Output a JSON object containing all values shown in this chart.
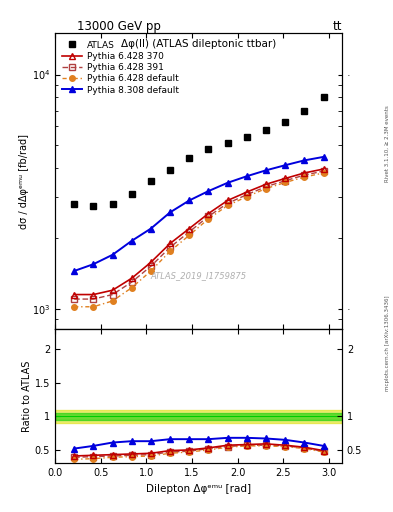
{
  "title_top": "13000 GeV pp",
  "title_top_right": "tt",
  "plot_title": "Δφ(ll) (ATLAS dileptonic ttbar)",
  "ylabel_main": "dσ / dΔφᵉᵐᵘ [fb/rad]",
  "ylabel_ratio": "Ratio to ATLAS",
  "xlabel": "Dilepton Δφᵉᵐᵘ [rad]",
  "right_label": "Rivet 3.1.10, ≥ 2.3M events",
  "right_label2": "mcplots.cern.ch [arXiv:1306.3436]",
  "watermark": "ATLAS_2019_I1759875",
  "atlas_x": [
    0.21,
    0.42,
    0.63,
    0.84,
    1.05,
    1.26,
    1.47,
    1.68,
    1.89,
    2.1,
    2.31,
    2.52,
    2.73,
    2.94
  ],
  "atlas_y": [
    2800,
    2750,
    2800,
    3100,
    3500,
    3900,
    4400,
    4800,
    5100,
    5400,
    5800,
    6300,
    7000,
    8000
  ],
  "py6_370_x": [
    0.21,
    0.42,
    0.63,
    0.84,
    1.05,
    1.26,
    1.47,
    1.68,
    1.89,
    2.1,
    2.31,
    2.52,
    2.73,
    2.94
  ],
  "py6_370_y": [
    1150,
    1150,
    1200,
    1350,
    1580,
    1900,
    2200,
    2550,
    2900,
    3150,
    3400,
    3600,
    3800,
    3950
  ],
  "py6_391_x": [
    0.21,
    0.42,
    0.63,
    0.84,
    1.05,
    1.26,
    1.47,
    1.68,
    1.89,
    2.1,
    2.31,
    2.52,
    2.73,
    2.94
  ],
  "py6_391_y": [
    1100,
    1100,
    1150,
    1300,
    1520,
    1830,
    2130,
    2480,
    2820,
    3070,
    3320,
    3520,
    3720,
    3870
  ],
  "py6_def_x": [
    0.21,
    0.42,
    0.63,
    0.84,
    1.05,
    1.26,
    1.47,
    1.68,
    1.89,
    2.1,
    2.31,
    2.52,
    2.73,
    2.94
  ],
  "py6_def_y": [
    1020,
    1020,
    1080,
    1230,
    1450,
    1760,
    2060,
    2420,
    2760,
    3010,
    3260,
    3460,
    3650,
    3800
  ],
  "py8_def_x": [
    0.21,
    0.42,
    0.63,
    0.84,
    1.05,
    1.26,
    1.47,
    1.68,
    1.89,
    2.1,
    2.31,
    2.52,
    2.73,
    2.94
  ],
  "py8_def_y": [
    1450,
    1550,
    1700,
    1950,
    2200,
    2580,
    2900,
    3180,
    3450,
    3680,
    3900,
    4100,
    4300,
    4450
  ],
  "ratio_py6_370": [
    0.41,
    0.42,
    0.43,
    0.44,
    0.45,
    0.49,
    0.5,
    0.53,
    0.57,
    0.58,
    0.59,
    0.57,
    0.54,
    0.49
  ],
  "ratio_py6_391": [
    0.39,
    0.4,
    0.41,
    0.42,
    0.43,
    0.47,
    0.48,
    0.52,
    0.55,
    0.57,
    0.57,
    0.56,
    0.53,
    0.48
  ],
  "ratio_py6_def": [
    0.36,
    0.37,
    0.39,
    0.4,
    0.41,
    0.45,
    0.47,
    0.5,
    0.54,
    0.56,
    0.56,
    0.55,
    0.52,
    0.47
  ],
  "ratio_py8_def": [
    0.52,
    0.56,
    0.61,
    0.63,
    0.63,
    0.66,
    0.66,
    0.66,
    0.68,
    0.68,
    0.67,
    0.65,
    0.61,
    0.56
  ],
  "color_atlas": "#000000",
  "color_py6_370": "#c00000",
  "color_py6_391": "#b04040",
  "color_py6_def": "#e08020",
  "color_py8_def": "#0000dd",
  "band_yellow": "#dddd00",
  "band_green": "#00cc00",
  "band_yellow_alpha": 0.55,
  "band_green_alpha": 0.55,
  "ylim_main": [
    820,
    15000
  ],
  "ylim_ratio": [
    0.3,
    2.3
  ],
  "xlim": [
    0.0,
    3.14159
  ],
  "yticks_ratio_left": [
    0.5,
    1.0,
    1.5,
    2.0
  ],
  "yticks_ratio_right": [
    0.5,
    1.0,
    2.0
  ]
}
